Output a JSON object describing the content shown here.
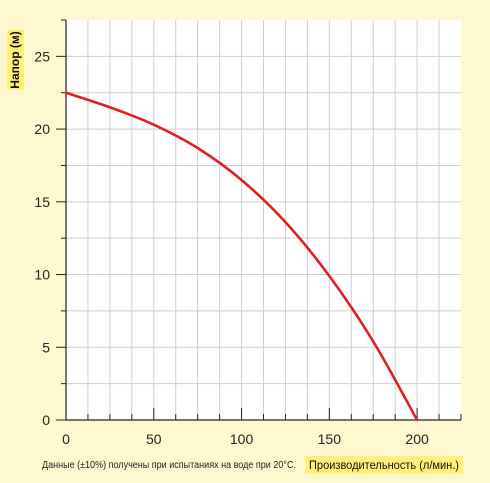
{
  "chart_data": {
    "type": "line",
    "title": "",
    "xlabel": "Производительность (л/мин.)",
    "ylabel": "Напор (м)",
    "note": "Данные (±10%) получены при испытаниях на воде при 20°С.",
    "xlim": [
      0,
      225
    ],
    "ylim": [
      0,
      27.5
    ],
    "x_ticks": [
      0,
      50,
      100,
      150,
      200
    ],
    "y_ticks": [
      0,
      5,
      10,
      15,
      20,
      25
    ],
    "grid": true,
    "x": [
      0,
      25,
      50,
      75,
      100,
      125,
      150,
      175,
      200
    ],
    "series": [
      {
        "name": "",
        "color": "#e02020",
        "values": [
          22.5,
          21.5,
          20.3,
          18.7,
          16.5,
          13.6,
          9.9,
          5.4,
          0
        ]
      }
    ],
    "accent_color": "#fff07a"
  }
}
